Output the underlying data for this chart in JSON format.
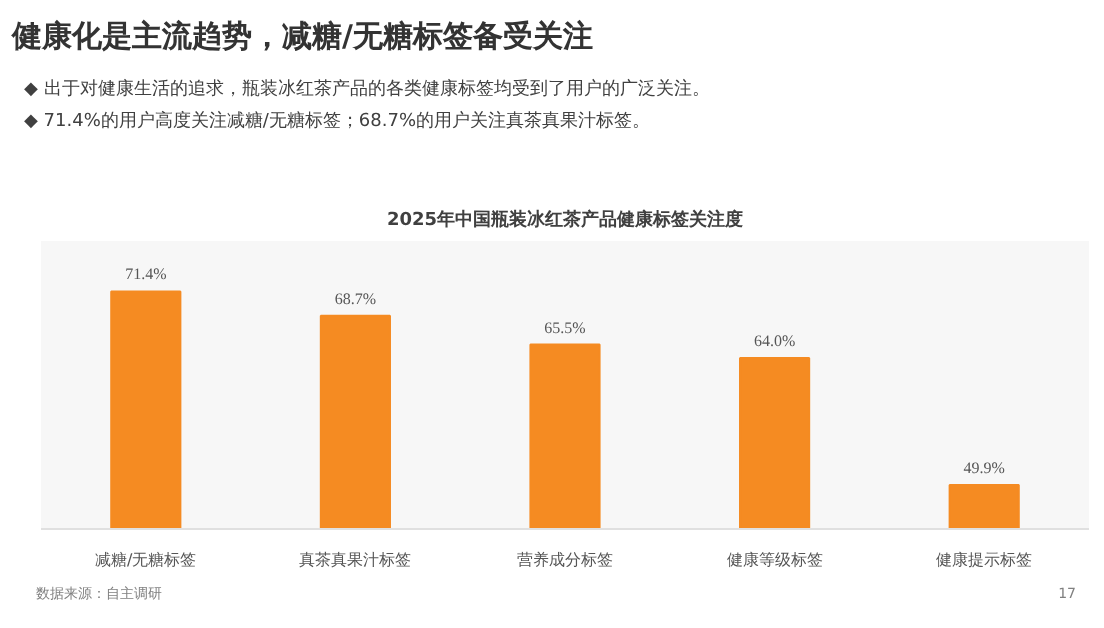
{
  "chart_data": {
    "type": "bar",
    "title": "2025年中国瓶装冰红茶产品健康标签关注度",
    "subtitle": "健康化是主流趋势，减糖/无糖标签备受关注",
    "categories": [
      "减糖/无糖标签",
      "真茶真果汁标签",
      "营养成分标签",
      "健康等级标签",
      "健康提示标签"
    ],
    "values": [
      71.4,
      68.7,
      65.5,
      64.0,
      49.9
    ],
    "value_labels": [
      "71.4%",
      "68.7%",
      "65.5%",
      "64.0%",
      "49.9%"
    ],
    "color": "#f58b22",
    "ylim": [
      45,
      77
    ],
    "tick_labels": "x",
    "grid": false,
    "annotations": [
      "◆ 出于对健康生活的追求，瓶装冰红茶产品的各类健康标签均受到了用户的广泛关注。",
      "◆ 71.4%的用户高度关注减糖/无糖标签；68.7%的用户关注真茶真果汁标签。",
      "数据来源：自主调研",
      "17"
    ]
  }
}
